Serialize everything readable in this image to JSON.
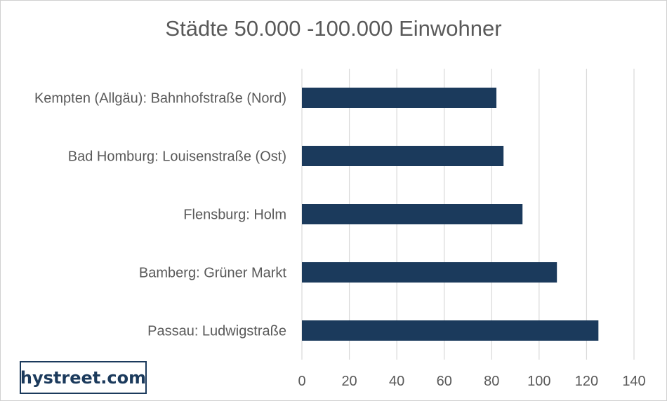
{
  "chart_data": {
    "type": "bar",
    "orientation": "horizontal",
    "title": "Städte 50.000 -100.000 Einwohner",
    "categories": [
      "Kempten (Allgäu): Bahnhofstraße (Nord)",
      "Bad Homburg: Louisenstraße (Ost)",
      "Flensburg: Holm",
      "Bamberg: Grüner Markt",
      "Passau: Ludwigstraße"
    ],
    "values": [
      82,
      85,
      93,
      107.5,
      125
    ],
    "xlim": [
      0,
      140
    ],
    "xticks": [
      "0",
      "20",
      "40",
      "60",
      "80",
      "100",
      "120",
      "140"
    ],
    "xlabel": "",
    "ylabel": "",
    "grid": "vertical",
    "legend": "none",
    "bar_color": "#1b3a5c",
    "grid_color": "#d9d9d9"
  },
  "logo": {
    "text": "hystreet.com"
  }
}
